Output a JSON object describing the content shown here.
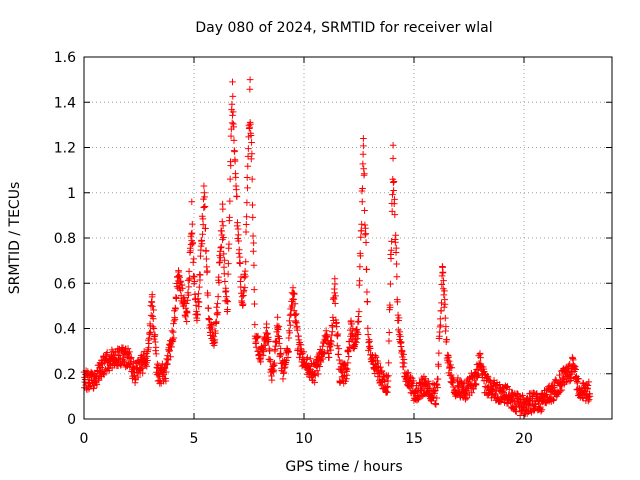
{
  "chart_data": {
    "type": "scatter",
    "title": "Day 080 of 2024, SRMTID for receiver wlal",
    "xlabel": "GPS time / hours",
    "ylabel": "SRMTID / TECUs",
    "xlim": [
      0,
      24
    ],
    "ylim": [
      0,
      1.6
    ],
    "xticks": [
      0,
      5,
      10,
      15,
      20
    ],
    "yticks": [
      0,
      0.2,
      0.4,
      0.6,
      0.8,
      1,
      1.2,
      1.4,
      1.6
    ],
    "xtick_labels": [
      "0",
      "5",
      "10",
      "15",
      "20"
    ],
    "ytick_labels": [
      "0",
      "0.2",
      "0.4",
      "0.6",
      "0.8",
      "1",
      "1.2",
      "1.4",
      "1.6"
    ],
    "grid": true,
    "marker": "+",
    "marker_color": "#ff0000",
    "series_name": "SRMTID",
    "x_range_of_data": [
      0,
      23
    ],
    "envelope": [
      [
        0.0,
        0.17
      ],
      [
        0.5,
        0.18
      ],
      [
        1.0,
        0.25
      ],
      [
        1.5,
        0.28
      ],
      [
        2.0,
        0.27
      ],
      [
        2.3,
        0.2
      ],
      [
        2.7,
        0.25
      ],
      [
        3.0,
        0.3
      ],
      [
        3.3,
        0.2
      ],
      [
        3.7,
        0.2
      ],
      [
        4.0,
        0.35
      ],
      [
        4.3,
        0.52
      ],
      [
        4.6,
        0.5
      ],
      [
        5.0,
        0.35
      ],
      [
        5.3,
        0.6
      ],
      [
        5.6,
        0.45
      ],
      [
        5.9,
        0.35
      ],
      [
        6.2,
        0.6
      ],
      [
        6.4,
        0.3
      ],
      [
        6.7,
        0.8
      ],
      [
        6.95,
        0.9
      ],
      [
        7.2,
        0.5
      ],
      [
        7.5,
        0.8
      ],
      [
        7.8,
        0.35
      ],
      [
        8.2,
        0.25
      ],
      [
        8.7,
        0.2
      ],
      [
        9.1,
        0.22
      ],
      [
        9.5,
        0.4
      ],
      [
        10.0,
        0.25
      ],
      [
        10.5,
        0.2
      ],
      [
        11.0,
        0.35
      ],
      [
        11.4,
        0.2
      ],
      [
        11.8,
        0.2
      ],
      [
        12.2,
        0.25
      ],
      [
        12.6,
        0.5
      ],
      [
        13.0,
        0.3
      ],
      [
        13.4,
        0.2
      ],
      [
        13.8,
        0.15
      ],
      [
        14.2,
        0.5
      ],
      [
        14.6,
        0.2
      ],
      [
        15.0,
        0.12
      ],
      [
        15.5,
        0.15
      ],
      [
        16.0,
        0.1
      ],
      [
        16.3,
        0.35
      ],
      [
        16.8,
        0.15
      ],
      [
        17.3,
        0.12
      ],
      [
        17.8,
        0.18
      ],
      [
        18.3,
        0.15
      ],
      [
        18.8,
        0.12
      ],
      [
        19.3,
        0.1
      ],
      [
        19.8,
        0.06
      ],
      [
        20.3,
        0.07
      ],
      [
        20.8,
        0.08
      ],
      [
        21.3,
        0.12
      ],
      [
        21.8,
        0.18
      ],
      [
        22.2,
        0.2
      ],
      [
        22.6,
        0.12
      ],
      [
        23.0,
        0.12
      ]
    ],
    "peaks": [
      {
        "x": 3.1,
        "y": 0.55
      },
      {
        "x": 4.3,
        "y": 0.65
      },
      {
        "x": 4.9,
        "y": 0.96
      },
      {
        "x": 5.45,
        "y": 1.03
      },
      {
        "x": 6.3,
        "y": 0.95
      },
      {
        "x": 6.75,
        "y": 1.49
      },
      {
        "x": 7.55,
        "y": 1.5
      },
      {
        "x": 8.3,
        "y": 0.42
      },
      {
        "x": 8.8,
        "y": 0.45
      },
      {
        "x": 9.5,
        "y": 0.58
      },
      {
        "x": 11.4,
        "y": 0.62
      },
      {
        "x": 12.15,
        "y": 0.42
      },
      {
        "x": 12.7,
        "y": 1.24
      },
      {
        "x": 14.05,
        "y": 1.21
      },
      {
        "x": 16.3,
        "y": 0.67
      },
      {
        "x": 18.0,
        "y": 0.29
      },
      {
        "x": 22.2,
        "y": 0.23
      }
    ],
    "points_per_hour": 75
  }
}
